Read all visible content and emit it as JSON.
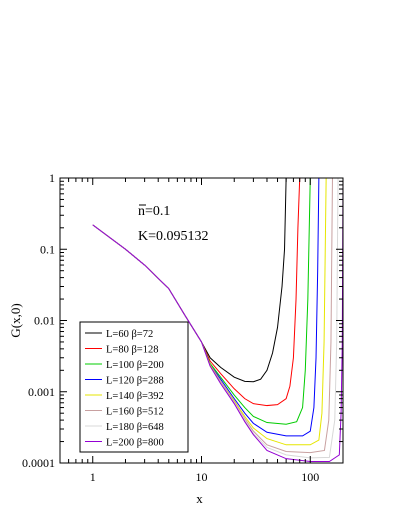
{
  "chart_data": {
    "type": "line",
    "title": "",
    "xlabel": "x",
    "ylabel": "G(x,0)",
    "xscale": "log",
    "yscale": "log",
    "xlim": [
      0.5,
      200
    ],
    "ylim": [
      0.0001,
      1
    ],
    "grid": false,
    "legend_position": "bottom-left",
    "x_ticks": [
      {
        "value": 1,
        "label": "1"
      },
      {
        "value": 10,
        "label": "10"
      },
      {
        "value": 100,
        "label": "100"
      }
    ],
    "y_ticks": [
      {
        "value": 1,
        "label": "1"
      },
      {
        "value": 0.1,
        "label": "0.1"
      },
      {
        "value": 0.01,
        "label": "0.01"
      },
      {
        "value": 0.001,
        "label": "0.001"
      },
      {
        "value": 0.0001,
        "label": "0.0001"
      }
    ],
    "annotations": [
      {
        "text_overline": "n",
        "text": "=0.1"
      },
      {
        "text": "K=0.095132"
      }
    ],
    "common_curve": [
      [
        1,
        0.22
      ],
      [
        2,
        0.1
      ],
      [
        3,
        0.06
      ],
      [
        5,
        0.028
      ],
      [
        7,
        0.012
      ],
      [
        10,
        0.005
      ]
    ],
    "series": [
      {
        "name": "L=60   β=72",
        "color": "#000000",
        "points": [
          [
            12,
            0.003
          ],
          [
            15,
            0.0022
          ],
          [
            20,
            0.0016
          ],
          [
            25,
            0.0014
          ],
          [
            30,
            0.00138
          ],
          [
            35,
            0.0015
          ],
          [
            40,
            0.002
          ],
          [
            45,
            0.0035
          ],
          [
            50,
            0.008
          ],
          [
            55,
            0.03
          ],
          [
            58,
            0.1
          ],
          [
            60,
            1
          ]
        ]
      },
      {
        "name": "L=80   β=128",
        "color": "#ff0000",
        "points": [
          [
            12,
            0.0027
          ],
          [
            15,
            0.0018
          ],
          [
            20,
            0.0011
          ],
          [
            25,
            0.0008
          ],
          [
            30,
            0.00068
          ],
          [
            40,
            0.00064
          ],
          [
            50,
            0.00066
          ],
          [
            60,
            0.0008
          ],
          [
            65,
            0.0012
          ],
          [
            70,
            0.003
          ],
          [
            74,
            0.02
          ],
          [
            77,
            0.2
          ],
          [
            80,
            1
          ]
        ]
      },
      {
        "name": "L=100 β=200",
        "color": "#00cc00",
        "points": [
          [
            12,
            0.0025
          ],
          [
            15,
            0.0016
          ],
          [
            20,
            0.0009
          ],
          [
            25,
            0.0006
          ],
          [
            30,
            0.00045
          ],
          [
            40,
            0.00037
          ],
          [
            60,
            0.00035
          ],
          [
            75,
            0.00038
          ],
          [
            85,
            0.0006
          ],
          [
            90,
            0.002
          ],
          [
            95,
            0.02
          ],
          [
            100,
            1
          ]
        ]
      },
      {
        "name": "L=120 β=288",
        "color": "#0000ff",
        "points": [
          [
            12,
            0.0024
          ],
          [
            15,
            0.0015
          ],
          [
            20,
            0.0008
          ],
          [
            25,
            0.0005
          ],
          [
            30,
            0.00036
          ],
          [
            40,
            0.00027
          ],
          [
            60,
            0.00024
          ],
          [
            85,
            0.00024
          ],
          [
            100,
            0.00028
          ],
          [
            108,
            0.0006
          ],
          [
            113,
            0.003
          ],
          [
            117,
            0.05
          ],
          [
            120,
            1
          ]
        ]
      },
      {
        "name": "L=140 β=392",
        "color": "#e6e600",
        "points": [
          [
            12,
            0.0024
          ],
          [
            15,
            0.0014
          ],
          [
            20,
            0.00075
          ],
          [
            25,
            0.00045
          ],
          [
            30,
            0.00031
          ],
          [
            40,
            0.00022
          ],
          [
            60,
            0.00018
          ],
          [
            100,
            0.00018
          ],
          [
            120,
            0.00021
          ],
          [
            128,
            0.0005
          ],
          [
            134,
            0.005
          ],
          [
            140,
            1
          ]
        ]
      },
      {
        "name": "L=160 β=512",
        "color": "#c8a0a0",
        "points": [
          [
            12,
            0.0023
          ],
          [
            15,
            0.0014
          ],
          [
            20,
            0.00072
          ],
          [
            25,
            0.00042
          ],
          [
            30,
            0.00028
          ],
          [
            40,
            0.00018
          ],
          [
            60,
            0.000145
          ],
          [
            100,
            0.00014
          ],
          [
            135,
            0.00015
          ],
          [
            148,
            0.0004
          ],
          [
            155,
            0.005
          ],
          [
            160,
            1
          ]
        ]
      },
      {
        "name": "L=180 β=648",
        "color": "#d8d8d8",
        "points": [
          [
            12,
            0.0023
          ],
          [
            15,
            0.0013
          ],
          [
            20,
            0.0007
          ],
          [
            25,
            0.0004
          ],
          [
            30,
            0.00026
          ],
          [
            40,
            0.000165
          ],
          [
            60,
            0.00013
          ],
          [
            100,
            0.000118
          ],
          [
            150,
            0.00012
          ],
          [
            168,
            0.0004
          ],
          [
            175,
            0.005
          ],
          [
            180,
            1
          ]
        ]
      },
      {
        "name": "L=200 β=800",
        "color": "#9400d3",
        "points": [
          [
            12,
            0.0023
          ],
          [
            15,
            0.0013
          ],
          [
            20,
            0.00068
          ],
          [
            25,
            0.00038
          ],
          [
            30,
            0.00025
          ],
          [
            40,
            0.00015
          ],
          [
            60,
            0.000115
          ],
          [
            100,
            0.000105
          ],
          [
            150,
            0.000105
          ],
          [
            185,
            0.00013
          ],
          [
            192,
            0.0005
          ],
          [
            197,
            0.005
          ],
          [
            200,
            1
          ]
        ]
      }
    ]
  }
}
